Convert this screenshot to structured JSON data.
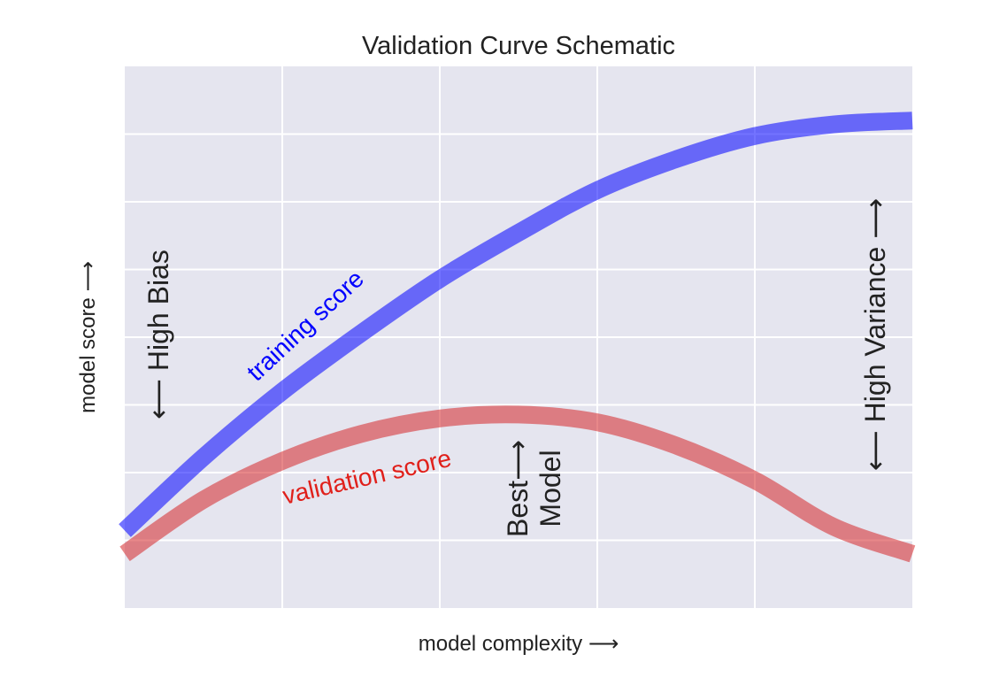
{
  "chart_data": {
    "type": "line",
    "title": "Validation Curve Schematic",
    "xlabel": "model complexity ⟶",
    "ylabel": "model score ⟶",
    "xlim": [
      0,
      1
    ],
    "ylim": [
      -0.3,
      1.1
    ],
    "grid": true,
    "series": [
      {
        "name": "training score",
        "color": "#0000ff",
        "x": [
          0,
          0.1,
          0.2,
          0.3,
          0.4,
          0.5,
          0.6,
          0.7,
          0.8,
          0.9,
          1.0
        ],
        "values": [
          -0.1,
          0.09,
          0.26,
          0.41,
          0.55,
          0.67,
          0.78,
          0.86,
          0.92,
          0.95,
          0.96
        ]
      },
      {
        "name": "validation score",
        "color": "#d62728",
        "x": [
          0,
          0.1,
          0.2,
          0.3,
          0.4,
          0.5,
          0.6,
          0.7,
          0.8,
          0.9,
          1.0
        ],
        "values": [
          -0.16,
          -0.02,
          0.08,
          0.15,
          0.19,
          0.2,
          0.18,
          0.12,
          0.03,
          -0.09,
          -0.16
        ]
      }
    ],
    "annotations": {
      "high_bias": "⟵ High Bias",
      "high_variance": "⟵ High Variance ⟶",
      "best_model": "Best⟶\nModel",
      "training_label": "training score",
      "validation_label": "validation score"
    }
  }
}
